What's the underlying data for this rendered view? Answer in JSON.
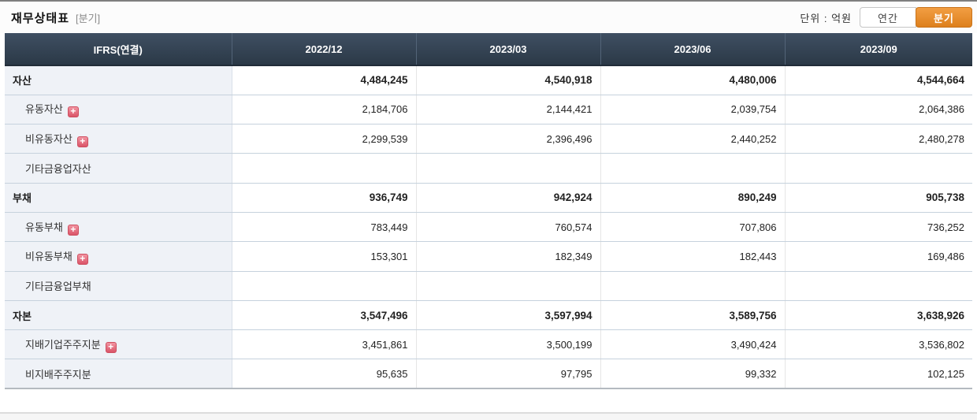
{
  "header": {
    "title": "재무상태표",
    "subtitle": "[분기]",
    "unit_label": "단위 : 억원",
    "annual_button": "연간",
    "quarterly_button": "분기",
    "accent_orange": "#e1861f",
    "header_bg": "#2f3e4e"
  },
  "table": {
    "first_col_header": "IFRS(연결)",
    "period_headers": [
      "2022/12",
      "2023/03",
      "2023/06",
      "2023/09"
    ],
    "rows": [
      {
        "label": "자산",
        "bold": true,
        "expand": false,
        "values": [
          "4,484,245",
          "4,540,918",
          "4,480,006",
          "4,544,664"
        ]
      },
      {
        "label": "유동자산",
        "bold": false,
        "expand": true,
        "values": [
          "2,184,706",
          "2,144,421",
          "2,039,754",
          "2,064,386"
        ]
      },
      {
        "label": "비유동자산",
        "bold": false,
        "expand": true,
        "values": [
          "2,299,539",
          "2,396,496",
          "2,440,252",
          "2,480,278"
        ]
      },
      {
        "label": "기타금융업자산",
        "bold": false,
        "expand": false,
        "values": [
          "",
          "",
          "",
          ""
        ]
      },
      {
        "label": "부채",
        "bold": true,
        "expand": false,
        "values": [
          "936,749",
          "942,924",
          "890,249",
          "905,738"
        ]
      },
      {
        "label": "유동부채",
        "bold": false,
        "expand": true,
        "values": [
          "783,449",
          "760,574",
          "707,806",
          "736,252"
        ]
      },
      {
        "label": "비유동부채",
        "bold": false,
        "expand": true,
        "values": [
          "153,301",
          "182,349",
          "182,443",
          "169,486"
        ]
      },
      {
        "label": "기타금융업부채",
        "bold": false,
        "expand": false,
        "values": [
          "",
          "",
          "",
          ""
        ]
      },
      {
        "label": "자본",
        "bold": true,
        "expand": false,
        "values": [
          "3,547,496",
          "3,597,994",
          "3,589,756",
          "3,638,926"
        ]
      },
      {
        "label": "지배기업주주지분",
        "bold": false,
        "expand": true,
        "values": [
          "3,451,861",
          "3,500,199",
          "3,490,424",
          "3,536,802"
        ]
      },
      {
        "label": "비지배주주지분",
        "bold": false,
        "expand": false,
        "values": [
          "95,635",
          "97,795",
          "99,332",
          "102,125"
        ]
      }
    ]
  }
}
